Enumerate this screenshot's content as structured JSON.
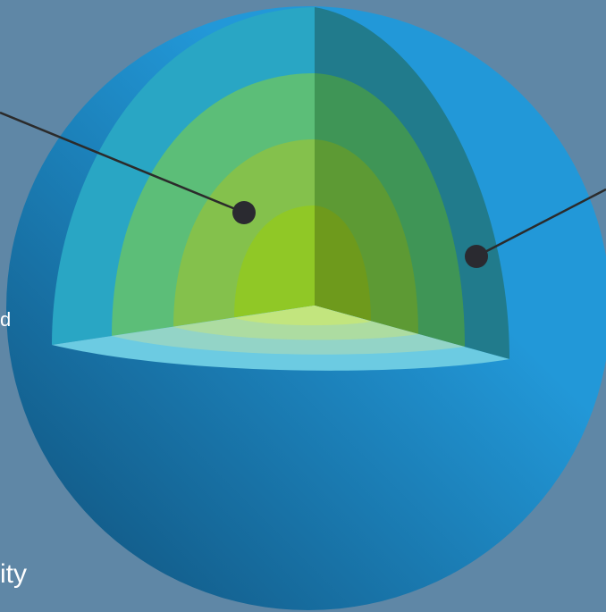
{
  "labels": {
    "left_mid_fragment": "d",
    "bottom_left_fragment": "ity"
  },
  "colors": {
    "background": "#5f87a6",
    "sphere_light": "#2298d8",
    "sphere_dark": "#0f4f78",
    "layer_outer": "#29a6c4",
    "layer_outer_shade": "#217b8c",
    "layer_middle": "#5cbe78",
    "layer_middle_shade": "#3f9556",
    "layer_inner": "#84c14c",
    "layer_inner_shade": "#5d9a34",
    "core": "#90c826",
    "core_shade": "#6e9a1c",
    "cut_surface": "#6ccbe2",
    "callout_line": "#2b2b2b",
    "callout_dot": "#2a2a30"
  }
}
